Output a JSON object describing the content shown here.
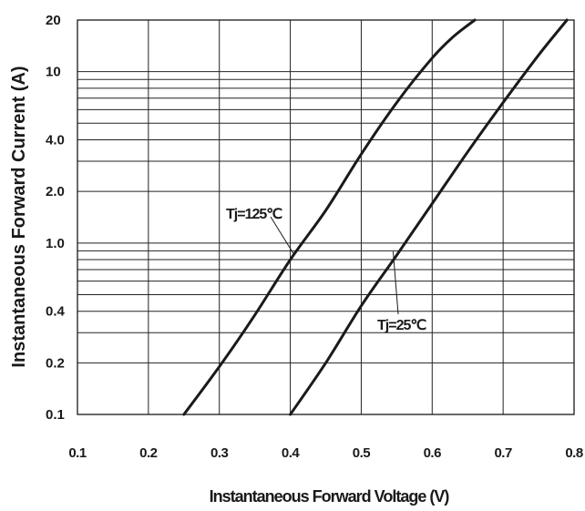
{
  "chart_data": {
    "type": "line",
    "title": "",
    "xlabel": "Instantaneous Forward Voltage (V)",
    "ylabel": "Instantaneous Forward Current (A)",
    "xlim": [
      0.1,
      0.8
    ],
    "ylim": [
      0.1,
      20
    ],
    "y_scale": "log",
    "grid": true,
    "x_ticks": [
      "0.1",
      "0.2",
      "0.3",
      "0.4",
      "0.5",
      "0.6",
      "0.7",
      "0.8"
    ],
    "y_ticks": [
      {
        "value": 0.1,
        "label": "0.1"
      },
      {
        "value": 0.2,
        "label": "0.2"
      },
      {
        "value": 0.4,
        "label": "0.4"
      },
      {
        "value": 1.0,
        "label": "1.0"
      },
      {
        "value": 2.0,
        "label": "2.0"
      },
      {
        "value": 4.0,
        "label": "4.0"
      },
      {
        "value": 10,
        "label": "10"
      },
      {
        "value": 20,
        "label": "20"
      }
    ],
    "y_gridlines": [
      0.1,
      0.2,
      0.3,
      0.4,
      0.5,
      0.6,
      0.7,
      0.8,
      0.9,
      1,
      2,
      3,
      4,
      5,
      6,
      7,
      8,
      9,
      10,
      20
    ],
    "series": [
      {
        "name": "Tj=125℃",
        "x": [
          0.25,
          0.3,
          0.35,
          0.4,
          0.45,
          0.5,
          0.55,
          0.6,
          0.63,
          0.66
        ],
        "y": [
          0.1,
          0.19,
          0.38,
          0.8,
          1.55,
          3.3,
          6.6,
          12,
          16,
          20
        ]
      },
      {
        "name": "Tj=25℃",
        "x": [
          0.4,
          0.45,
          0.5,
          0.55,
          0.6,
          0.65,
          0.7,
          0.75,
          0.79
        ],
        "y": [
          0.1,
          0.2,
          0.43,
          0.85,
          1.7,
          3.4,
          6.6,
          12.5,
          20
        ]
      }
    ],
    "annotations": [
      "Tj=125℃",
      "Tj=25℃"
    ],
    "line_color": "#1a1a1a",
    "grid_color": "#222222"
  }
}
